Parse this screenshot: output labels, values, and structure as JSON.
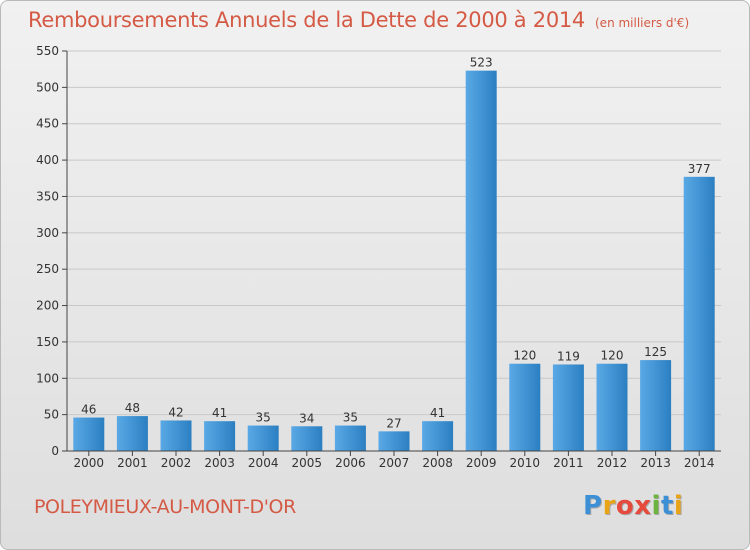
{
  "header": {
    "title": "Remboursements Annuels de la Dette de 2000 à 2014",
    "subtitle": "(en milliers d'€)"
  },
  "footer": {
    "city": "POLEYMIEUX-AU-MONT-D'OR",
    "logo_letters": [
      "P",
      "r",
      "o",
      "x",
      "i",
      "t",
      "i"
    ],
    "logo_colors": [
      "#3d8fd6",
      "#e8a317",
      "#e64a3c",
      "#e64a3c",
      "#6cb33f",
      "#3d8fd6",
      "#e8a317"
    ]
  },
  "colors": {
    "bar_light": "#5aa9e6",
    "bar_dark": "#2b7fc1",
    "title": "#d45a45",
    "grid": "#c8c8c8"
  },
  "chart_data": {
    "type": "bar",
    "title": "Remboursements Annuels de la Dette de 2000 à 2014",
    "subtitle": "(en milliers d'€)",
    "xlabel": "",
    "ylabel": "",
    "categories": [
      "2000",
      "2001",
      "2002",
      "2003",
      "2004",
      "2005",
      "2006",
      "2007",
      "2008",
      "2009",
      "2010",
      "2011",
      "2012",
      "2013",
      "2014"
    ],
    "values": [
      46,
      48,
      42,
      41,
      35,
      34,
      35,
      27,
      41,
      523,
      120,
      119,
      120,
      125,
      377
    ],
    "ylim": [
      0,
      550
    ],
    "yticks": [
      0,
      50,
      100,
      150,
      200,
      250,
      300,
      350,
      400,
      450,
      500,
      550
    ],
    "grid": true,
    "data_labels": true
  }
}
